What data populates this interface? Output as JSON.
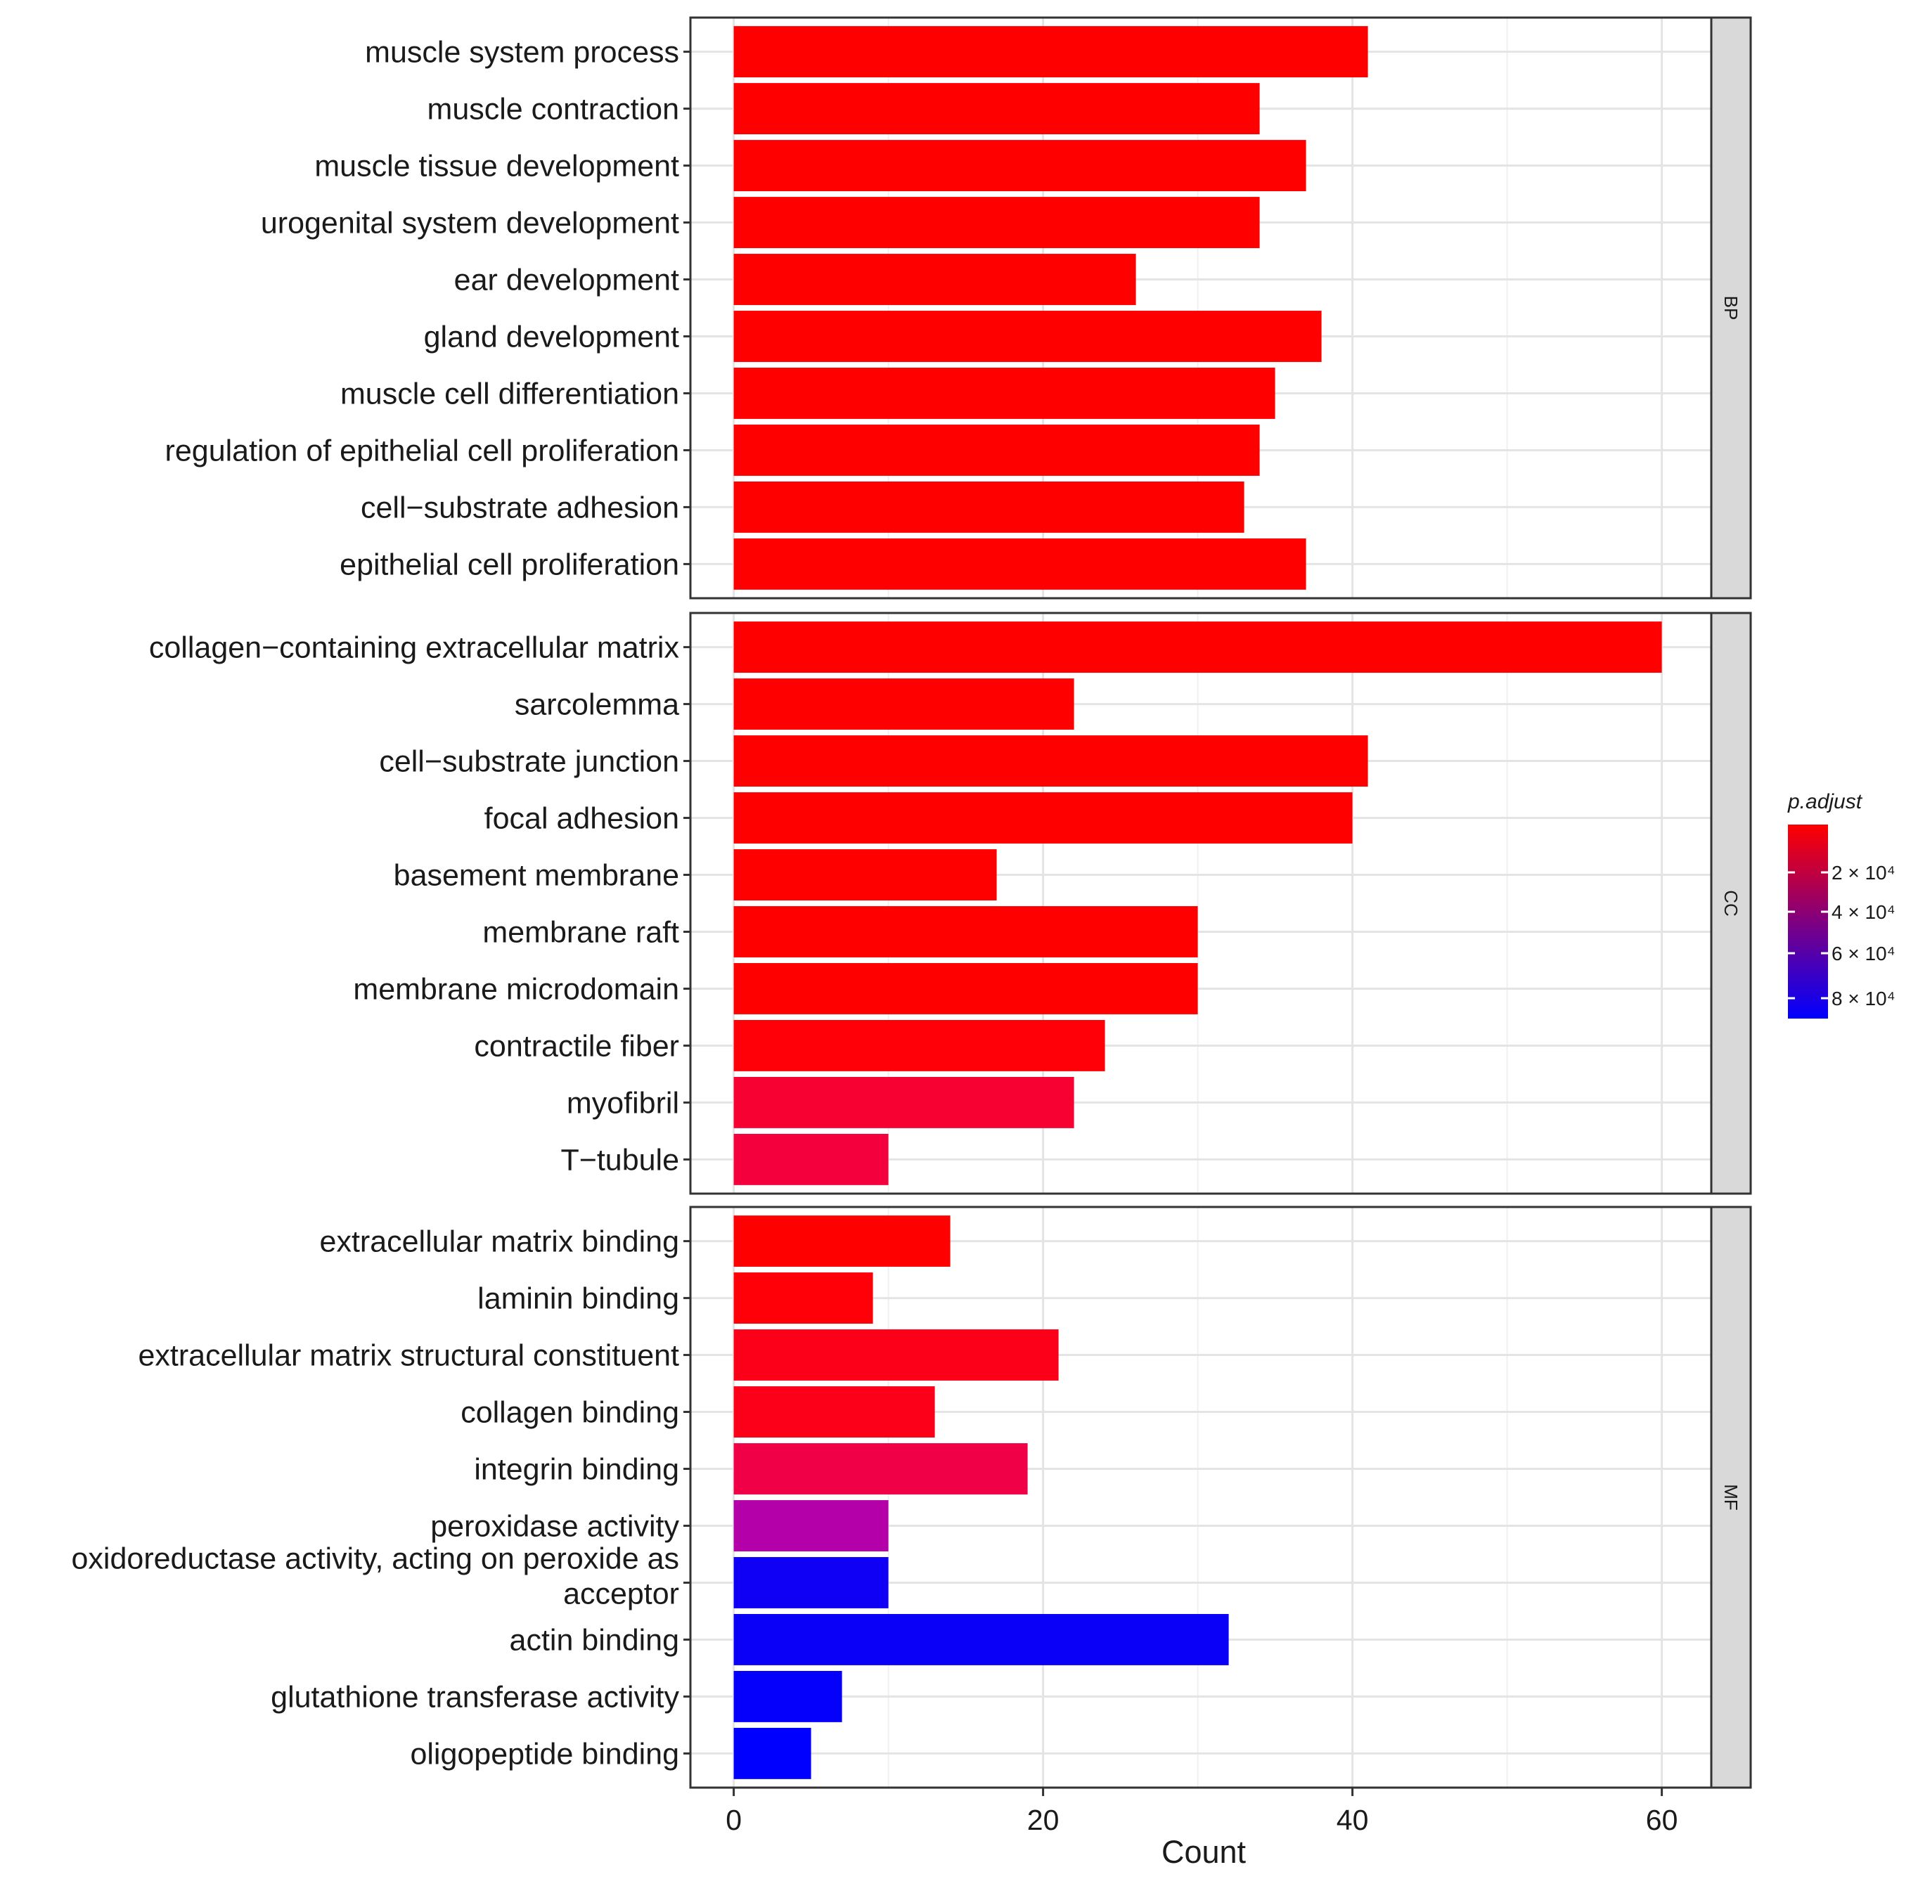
{
  "chart_data": {
    "type": "bar",
    "orientation": "horizontal",
    "xlabel": "Count",
    "ylabel": "",
    "xlim": [
      -2.8,
      63.2
    ],
    "xticks": [
      0,
      20,
      40,
      60
    ],
    "grid": true,
    "legend": {
      "title": "p.adjust",
      "placement": "right",
      "ticks": [
        "2 × 10⁴",
        "4 × 10⁴",
        "6 × 10⁴",
        "8 × 10⁴"
      ],
      "colors": [
        "#ff0000",
        "#0000ff"
      ]
    },
    "facets": [
      {
        "name": "BP",
        "categories": [
          "muscle system process",
          "muscle contraction",
          "muscle tissue development",
          "urogenital system development",
          "ear development",
          "gland development",
          "muscle cell differentiation",
          "regulation of epithelial cell proliferation",
          "cell−substrate adhesion",
          "epithelial cell proliferation"
        ],
        "values": [
          41,
          34,
          37,
          34,
          26,
          38,
          35,
          34,
          33,
          37
        ],
        "colors": [
          "#ff0000",
          "#ff0000",
          "#ff0000",
          "#ff0000",
          "#ff0000",
          "#ff0000",
          "#ff0000",
          "#ff0000",
          "#ff0000",
          "#ff0000"
        ]
      },
      {
        "name": "CC",
        "categories": [
          "collagen−containing extracellular matrix",
          "sarcolemma",
          "cell−substrate junction",
          "focal adhesion",
          "basement membrane",
          "membrane raft",
          "membrane microdomain",
          "contractile fiber",
          "myofibril",
          "T−tubule"
        ],
        "values": [
          60,
          22,
          41,
          40,
          17,
          30,
          30,
          24,
          22,
          10
        ],
        "colors": [
          "#ff0000",
          "#ff0000",
          "#ff0000",
          "#ff0000",
          "#ff0000",
          "#ff0000",
          "#ff0000",
          "#ff0008",
          "#f70032",
          "#f4003c"
        ]
      },
      {
        "name": "MF",
        "categories": [
          "extracellular matrix binding",
          "laminin binding",
          "extracellular matrix structural constituent",
          "collagen binding",
          "integrin binding",
          "peroxidase activity",
          "oxidoreductase activity, acting on peroxide as acceptor",
          "actin binding",
          "glutathione transferase activity",
          "oligopeptide binding"
        ],
        "values": [
          14,
          9,
          21,
          13,
          19,
          10,
          10,
          32,
          7,
          5
        ],
        "colors": [
          "#ff0000",
          "#ff0008",
          "#fb0018",
          "#fb0018",
          "#f00046",
          "#b400a8",
          "#0f00f5",
          "#0a00f8",
          "#0500fb",
          "#0000ff"
        ]
      }
    ]
  }
}
